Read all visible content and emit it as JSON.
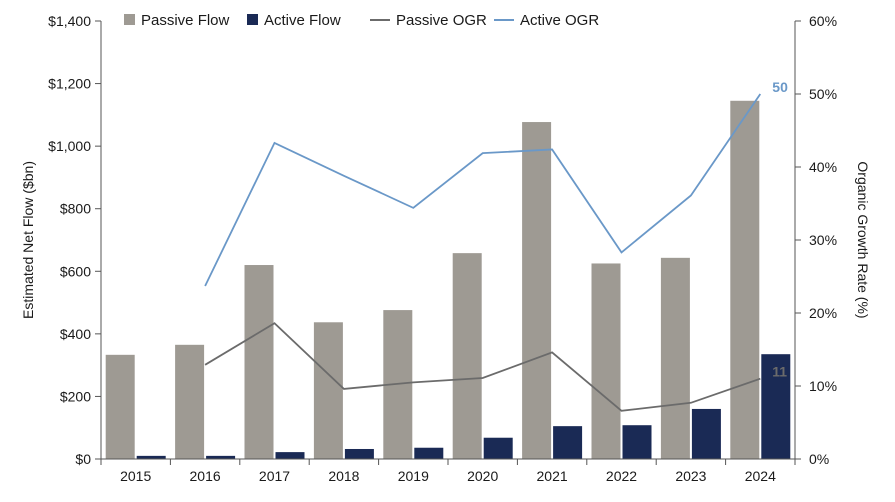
{
  "chart_data": {
    "type": "bar",
    "categories": [
      "2015",
      "2016",
      "2017",
      "2018",
      "2019",
      "2020",
      "2021",
      "2022",
      "2023",
      "2024"
    ],
    "series": [
      {
        "name": "Passive Flow",
        "kind": "bar",
        "axis": "left",
        "color": "#9e9a93",
        "values": [
          333,
          365,
          620,
          437,
          476,
          658,
          1077,
          625,
          643,
          1145
        ]
      },
      {
        "name": "Active Flow",
        "kind": "bar",
        "axis": "left",
        "color": "#1a2a55",
        "values": [
          10,
          10,
          22,
          32,
          36,
          68,
          105,
          108,
          160,
          335
        ]
      },
      {
        "name": "Passive OGR",
        "kind": "line",
        "axis": "right",
        "color": "#6b6b6b",
        "values": [
          null,
          12.9,
          18.6,
          9.6,
          10.5,
          11.1,
          14.6,
          6.6,
          7.7,
          11
        ]
      },
      {
        "name": "Active OGR",
        "kind": "line",
        "axis": "right",
        "color": "#6a98c8",
        "values": [
          null,
          23.7,
          43.3,
          38.8,
          34.4,
          41.9,
          42.4,
          28.3,
          36.1,
          50
        ]
      }
    ],
    "left_axis": {
      "label": "Estimated Net Flow ($bn)",
      "range": [
        0,
        1400
      ],
      "ticks": [
        0,
        200,
        400,
        600,
        800,
        1000,
        1200,
        1400
      ],
      "tick_labels": [
        "$0",
        "$200",
        "$400",
        "$600",
        "$800",
        "$1,000",
        "$1,200",
        "$1,400"
      ]
    },
    "right_axis": {
      "label": "Organic Growth Rate (%)",
      "range": [
        0,
        60
      ],
      "ticks": [
        0,
        10,
        20,
        30,
        40,
        50,
        60
      ],
      "tick_labels": [
        "0%",
        "10%",
        "20%",
        "30%",
        "40%",
        "50%",
        "60%"
      ]
    },
    "annotations": [
      {
        "series": "Active OGR",
        "category": "2024",
        "text": "50",
        "color": "#6a98c8"
      },
      {
        "series": "Passive OGR",
        "category": "2024",
        "text": "11",
        "color": "#6b6b6b"
      }
    ],
    "legend": {
      "position": "top"
    },
    "grid": false
  }
}
